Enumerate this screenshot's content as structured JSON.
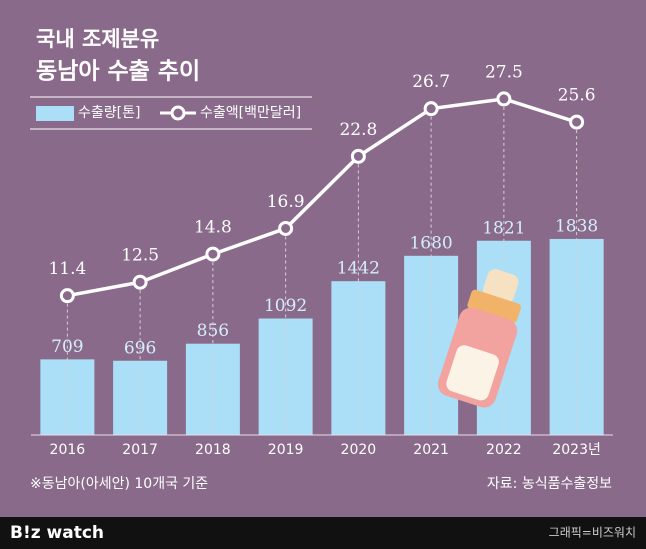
{
  "chart_data": {
    "type": "bar-line",
    "title": "국내 조제분유",
    "subtitle": "동남아 수출 추이",
    "categories": [
      "2016",
      "2017",
      "2018",
      "2019",
      "2020",
      "2021",
      "2022",
      "2023년"
    ],
    "series": [
      {
        "name": "수출량[톤]",
        "type": "bar",
        "color": "#aadff7",
        "values": [
          709,
          696,
          856,
          1092,
          1442,
          1680,
          1821,
          1838
        ]
      },
      {
        "name": "수출액[백만달러]",
        "type": "line",
        "axis": "y2",
        "color": "#ffffff",
        "values": [
          11.4,
          12.5,
          14.8,
          16.9,
          22.8,
          26.7,
          27.5,
          25.6
        ]
      }
    ],
    "ylim": [
      0,
      3300
    ],
    "y2lim": [
      0,
      28.8
    ],
    "note": "※동남아(아세안) 10개국 기준",
    "source": "자료: 농식품수출정보"
  },
  "footer": {
    "logo": "B!z watch",
    "credit": "그래픽=비즈워치"
  }
}
